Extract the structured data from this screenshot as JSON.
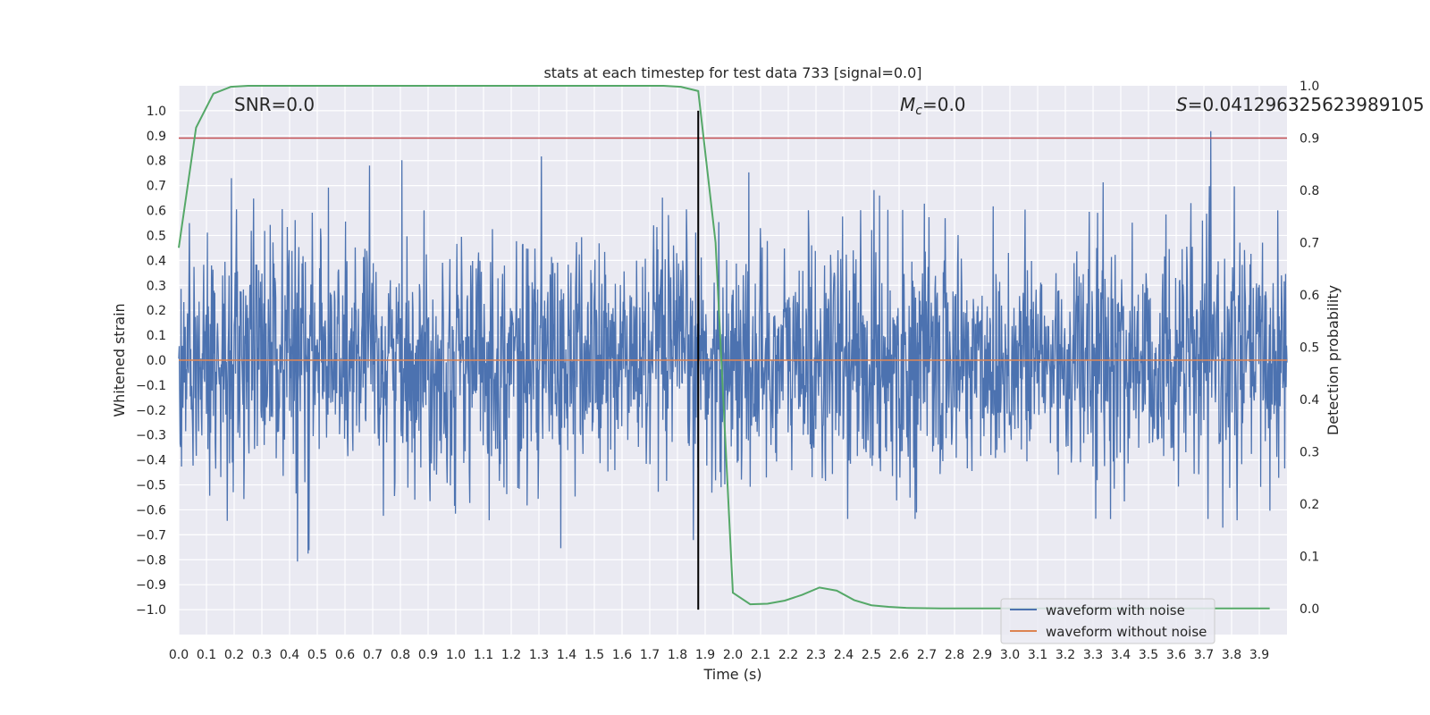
{
  "chart_data": {
    "type": "line",
    "title": "stats at each timestep for test data 733 [signal=0.0]",
    "xlabel": "Time (s)",
    "ylabel": "Whitened strain",
    "y2label": "Detection probability",
    "xlim": [
      0.0,
      4.0
    ],
    "ylim": [
      -1.1,
      1.1
    ],
    "y2lim": [
      -0.05,
      1.0
    ],
    "grid": true,
    "x_ticks": [
      "0.0",
      "0.1",
      "0.2",
      "0.3",
      "0.4",
      "0.5",
      "0.6",
      "0.7",
      "0.8",
      "0.9",
      "1.0",
      "1.1",
      "1.2",
      "1.3",
      "1.4",
      "1.5",
      "1.6",
      "1.7",
      "1.8",
      "1.9",
      "2.0",
      "2.1",
      "2.2",
      "2.3",
      "2.4",
      "2.5",
      "2.6",
      "2.7",
      "2.8",
      "2.9",
      "3.0",
      "3.1",
      "3.2",
      "3.3",
      "3.4",
      "3.5",
      "3.6",
      "3.7",
      "3.8",
      "3.9"
    ],
    "y_ticks": [
      "1.0",
      "0.9",
      "0.8",
      "0.7",
      "0.6",
      "0.5",
      "0.4",
      "0.3",
      "0.2",
      "0.1",
      "0.0",
      "−0.1",
      "−0.2",
      "−0.3",
      "−0.4",
      "−0.5",
      "−0.6",
      "−0.7",
      "−0.8",
      "−0.9",
      "−1.0"
    ],
    "y2_ticks": [
      "1.0",
      "0.9",
      "0.8",
      "0.7",
      "0.6",
      "0.5",
      "0.4",
      "0.3",
      "0.2",
      "0.1",
      "0.0"
    ],
    "annotations": {
      "snr": "SNR=0.0",
      "mc_symbol": "M",
      "mc_sub": "c",
      "mc_value": "=0.0",
      "s_symbol": "S",
      "s_value": "=0.041296325623989105"
    },
    "threshold_y2": 0.9,
    "vline_x": 1.875,
    "vline_range": [
      -1.0,
      1.0
    ],
    "noise_amplitude_range": [
      -1.0,
      1.0
    ],
    "series": [
      {
        "name": "waveform with noise",
        "color": "#4c72b0"
      },
      {
        "name": "waveform without noise",
        "color": "#dd8452",
        "value": 0.0
      },
      {
        "name": "detection probability",
        "color": "#55a868",
        "x": [
          0.0,
          0.0625,
          0.125,
          0.1875,
          0.25,
          0.3125,
          0.5,
          1.0,
          1.5,
          1.75,
          1.8125,
          1.875,
          1.9375,
          2.0,
          2.0625,
          2.125,
          2.1875,
          2.25,
          2.3125,
          2.375,
          2.4375,
          2.5,
          2.5625,
          2.625,
          2.75,
          3.0,
          3.5,
          3.9375
        ],
        "values": [
          0.69,
          0.92,
          0.985,
          0.998,
          1.0,
          1.0,
          1.0,
          1.0,
          1.0,
          1.0,
          0.998,
          0.99,
          0.7,
          0.03,
          0.008,
          0.009,
          0.015,
          0.026,
          0.04,
          0.034,
          0.016,
          0.006,
          0.003,
          0.001,
          0.0,
          0.0,
          0.0,
          0.0
        ]
      }
    ],
    "legend": {
      "position": "lower right",
      "entries": [
        "waveform with noise",
        "waveform without noise"
      ]
    },
    "colors": {
      "background": "#eaeaf2",
      "grid": "#ffffff",
      "threshold": "#c44e52",
      "vline": "#000000"
    }
  }
}
